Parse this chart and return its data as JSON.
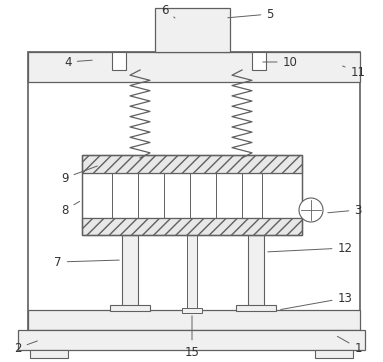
{
  "background_color": "#ffffff",
  "line_color": "#606060",
  "label_color": "#333333",
  "fig_width": 3.83,
  "fig_height": 3.62,
  "dpi": 100
}
